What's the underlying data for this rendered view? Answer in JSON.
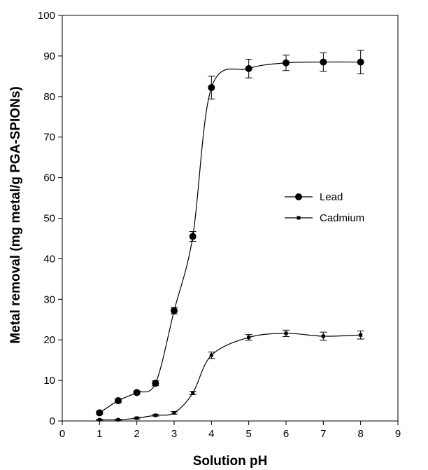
{
  "chart_data": {
    "type": "line",
    "title": "",
    "xlabel": "Solution pH",
    "ylabel": "Metal removal (mg metal/g PGA-SPIONs)",
    "xlim": [
      0,
      9
    ],
    "ylim": [
      0,
      100
    ],
    "xticks": [
      0,
      1,
      2,
      3,
      4,
      5,
      6,
      7,
      8,
      9
    ],
    "yticks": [
      0,
      10,
      20,
      30,
      40,
      50,
      60,
      70,
      80,
      90,
      100
    ],
    "grid": false,
    "legend_position": "center-right",
    "series": [
      {
        "name": "Lead",
        "marker": "circle",
        "color": "#000000",
        "x": [
          1,
          1.5,
          2,
          2.5,
          3,
          3.5,
          4,
          5,
          6,
          7,
          8
        ],
        "y": [
          2.0,
          5.0,
          7.0,
          9.3,
          27.2,
          45.5,
          82.2,
          86.9,
          88.3,
          88.5,
          88.5
        ],
        "error": [
          0.3,
          0.5,
          0.4,
          0.6,
          0.8,
          1.2,
          2.8,
          2.3,
          1.9,
          2.3,
          2.9
        ]
      },
      {
        "name": "Cadmium",
        "marker": "square",
        "color": "#000000",
        "x": [
          1,
          1.5,
          2,
          2.5,
          3,
          3.5,
          4,
          5,
          6,
          7,
          8
        ],
        "y": [
          0.3,
          0.3,
          0.7,
          1.4,
          2.0,
          6.9,
          16.2,
          20.6,
          21.6,
          20.9,
          21.2
        ],
        "error": [
          0.1,
          0.1,
          0.2,
          0.2,
          0.3,
          0.4,
          0.8,
          0.7,
          0.8,
          1.0,
          1.0
        ]
      }
    ]
  }
}
